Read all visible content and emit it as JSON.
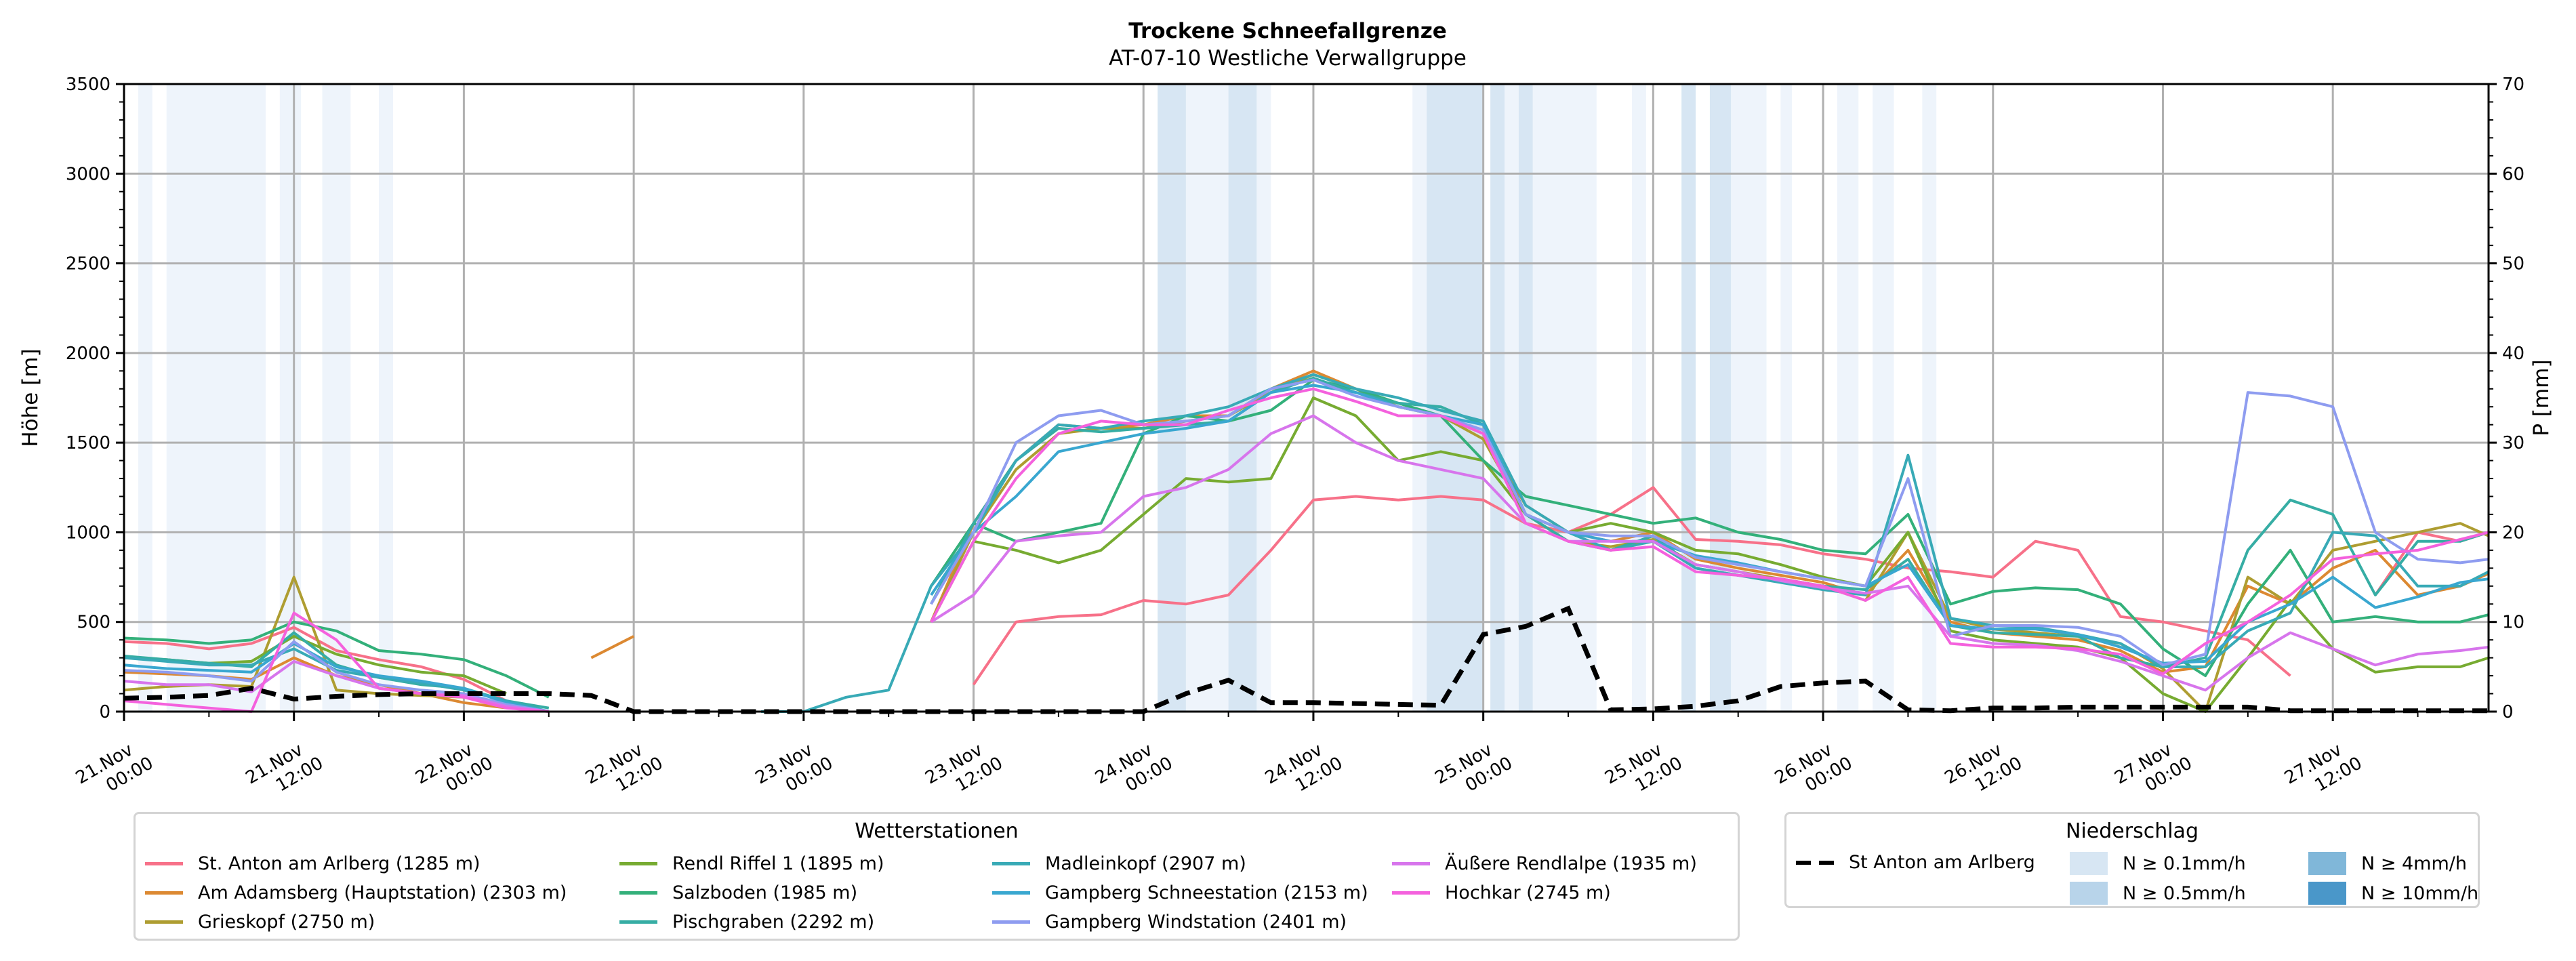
{
  "chart_data": {
    "type": "line",
    "title": "Trockene Schneefallgrenze",
    "subtitle": "AT-07-10 Westliche Verwallgruppe",
    "ylabel": "Höhe [m]",
    "y2label": "P [mm]",
    "ylim": [
      0,
      3500
    ],
    "y2lim": [
      0,
      70
    ],
    "yticks": [
      "0",
      "500",
      "1000",
      "1500",
      "2000",
      "2500",
      "3000",
      "3500"
    ],
    "y2ticks": [
      "0",
      "10",
      "20",
      "30",
      "40",
      "50",
      "60",
      "70"
    ],
    "grid": true,
    "x_unit": "hours since 21.Nov 00:00",
    "xlim_hours": [
      0,
      167
    ],
    "xticks": [
      {
        "hour": 0,
        "label1": "21.Nov",
        "label2": "00:00"
      },
      {
        "hour": 12,
        "label1": "21.Nov",
        "label2": "12:00"
      },
      {
        "hour": 24,
        "label1": "22.Nov",
        "label2": "00:00"
      },
      {
        "hour": 36,
        "label1": "22.Nov",
        "label2": "12:00"
      },
      {
        "hour": 48,
        "label1": "23.Nov",
        "label2": "00:00"
      },
      {
        "hour": 60,
        "label1": "23.Nov",
        "label2": "12:00"
      },
      {
        "hour": 72,
        "label1": "24.Nov",
        "label2": "00:00"
      },
      {
        "hour": 84,
        "label1": "24.Nov",
        "label2": "12:00"
      },
      {
        "hour": 96,
        "label1": "25.Nov",
        "label2": "00:00"
      },
      {
        "hour": 108,
        "label1": "25.Nov",
        "label2": "12:00"
      },
      {
        "hour": 120,
        "label1": "26.Nov",
        "label2": "00:00"
      },
      {
        "hour": 132,
        "label1": "26.Nov",
        "label2": "12:00"
      },
      {
        "hour": 144,
        "label1": "27.Nov",
        "label2": "00:00"
      },
      {
        "hour": 156,
        "label1": "27.Nov",
        "label2": "12:00"
      }
    ],
    "x_hours": [
      0,
      3,
      6,
      9,
      12,
      15,
      18,
      21,
      24,
      27,
      30,
      33,
      36,
      39,
      42,
      45,
      48,
      51,
      54,
      57,
      60,
      63,
      66,
      69,
      72,
      75,
      78,
      81,
      84,
      87,
      90,
      93,
      96,
      99,
      102,
      105,
      108,
      111,
      114,
      117,
      120,
      123,
      126,
      129,
      132,
      135,
      138,
      141,
      144,
      147,
      150,
      153,
      156,
      159,
      162,
      165,
      167
    ],
    "series": [
      {
        "name": "St. Anton am Arlberg (1285 m)",
        "color": "#f77189",
        "values": [
          390,
          380,
          350,
          380,
          470,
          340,
          290,
          250,
          180,
          60,
          null,
          null,
          400,
          null,
          null,
          null,
          null,
          null,
          null,
          null,
          150,
          500,
          530,
          540,
          620,
          600,
          650,
          900,
          1180,
          1200,
          1180,
          1200,
          1180,
          1050,
          1000,
          1100,
          1250,
          960,
          950,
          930,
          880,
          850,
          800,
          780,
          750,
          950,
          900,
          530,
          500,
          450,
          400,
          200,
          null,
          650,
          1000,
          950,
          1000
        ]
      },
      {
        "name": "Am Adamsberg (Hauptstation) (2303 m)",
        "color": "#dc8932",
        "values": [
          220,
          210,
          200,
          180,
          300,
          200,
          150,
          100,
          50,
          20,
          null,
          300,
          420,
          null,
          null,
          null,
          null,
          null,
          null,
          500,
          1050,
          1400,
          1600,
          1580,
          1600,
          1650,
          1650,
          1800,
          1900,
          1800,
          1700,
          1650,
          1550,
          1150,
          1000,
          950,
          1000,
          850,
          800,
          760,
          720,
          650,
          900,
          500,
          440,
          420,
          400,
          340,
          220,
          250,
          700,
          600,
          800,
          900,
          650,
          700,
          770
        ]
      },
      {
        "name": "Grieskopf (2750 m)",
        "color": "#ae9d31",
        "values": [
          120,
          140,
          150,
          140,
          750,
          120,
          100,
          90,
          80,
          30,
          null,
          null,
          300,
          null,
          null,
          null,
          null,
          null,
          null,
          500,
          1000,
          1350,
          1550,
          1580,
          1580,
          1620,
          1650,
          1780,
          1880,
          1800,
          1700,
          1650,
          1520,
          1100,
          950,
          920,
          960,
          820,
          780,
          740,
          700,
          620,
          1000,
          520,
          460,
          440,
          420,
          380,
          240,
          0,
          750,
          600,
          900,
          950,
          1000,
          1050,
          980
        ]
      },
      {
        "name": "Rendl Riffel 1 (1895 m)",
        "color": "#77ab31",
        "values": [
          300,
          290,
          270,
          280,
          420,
          320,
          260,
          220,
          200,
          100,
          null,
          null,
          850,
          null,
          null,
          null,
          null,
          null,
          null,
          500,
          950,
          900,
          830,
          900,
          1100,
          1300,
          1280,
          1300,
          1750,
          1650,
          1400,
          1450,
          1400,
          1100,
          1000,
          1050,
          1000,
          900,
          880,
          820,
          750,
          700,
          1000,
          450,
          400,
          380,
          360,
          300,
          100,
          0,
          300,
          620,
          350,
          220,
          250,
          250,
          300
        ]
      },
      {
        "name": "Salzboden (1985 m)",
        "color": "#33b07a",
        "values": [
          410,
          400,
          380,
          400,
          500,
          450,
          340,
          320,
          290,
          200,
          80,
          null,
          860,
          null,
          null,
          null,
          null,
          null,
          null,
          700,
          1050,
          950,
          1000,
          1050,
          1550,
          1650,
          1620,
          1680,
          1850,
          1800,
          1720,
          1650,
          1400,
          1200,
          1150,
          1100,
          1050,
          1080,
          1000,
          960,
          900,
          880,
          1100,
          600,
          670,
          690,
          680,
          600,
          350,
          200,
          600,
          900,
          500,
          530,
          500,
          500,
          540
        ]
      },
      {
        "name": "Pischgraben (2292 m)",
        "color": "#36ada4",
        "values": [
          310,
          290,
          270,
          250,
          440,
          260,
          190,
          150,
          130,
          60,
          20,
          null,
          300,
          null,
          null,
          null,
          null,
          null,
          null,
          600,
          1050,
          1400,
          1580,
          1560,
          1580,
          1600,
          1620,
          1780,
          1860,
          1780,
          1720,
          1700,
          1600,
          1100,
          950,
          900,
          980,
          800,
          760,
          740,
          700,
          680,
          850,
          480,
          440,
          430,
          420,
          300,
          250,
          300,
          900,
          1180,
          1100,
          650,
          950,
          950,
          1000
        ]
      },
      {
        "name": "Madleinkopf (2907 m)",
        "color": "#38aab6",
        "values": [
          300,
          280,
          260,
          260,
          350,
          230,
          190,
          160,
          120,
          60,
          0,
          null,
          280,
          null,
          null,
          0,
          0,
          80,
          120,
          700,
          1000,
          1400,
          1600,
          1580,
          1620,
          1650,
          1700,
          1800,
          1880,
          1800,
          1750,
          1680,
          1620,
          1150,
          1000,
          900,
          950,
          800,
          760,
          720,
          680,
          650,
          1430,
          520,
          480,
          470,
          430,
          380,
          250,
          250,
          450,
          550,
          1000,
          980,
          700,
          700,
          780
        ]
      },
      {
        "name": "Gampberg Schneestation (2153 m)",
        "color": "#39a7d0",
        "values": [
          260,
          240,
          230,
          220,
          380,
          250,
          200,
          170,
          130,
          50,
          0,
          null,
          350,
          null,
          null,
          null,
          null,
          null,
          null,
          650,
          1000,
          1200,
          1450,
          1500,
          1550,
          1580,
          1620,
          1780,
          1820,
          1780,
          1700,
          1650,
          1600,
          1100,
          1000,
          950,
          950,
          870,
          830,
          780,
          740,
          700,
          820,
          480,
          460,
          460,
          430,
          360,
          270,
          280,
          500,
          600,
          750,
          580,
          640,
          720,
          740
        ]
      },
      {
        "name": "Gampberg Windstation (2401 m)",
        "color": "#8e9cf0",
        "values": [
          230,
          220,
          200,
          170,
          390,
          220,
          150,
          120,
          100,
          40,
          0,
          null,
          60,
          null,
          null,
          null,
          null,
          null,
          null,
          600,
          1000,
          1500,
          1650,
          1680,
          1600,
          1620,
          1650,
          1800,
          1850,
          1760,
          1700,
          1650,
          1570,
          1100,
          1000,
          980,
          980,
          860,
          820,
          780,
          740,
          700,
          1300,
          420,
          480,
          480,
          470,
          420,
          260,
          320,
          1780,
          1760,
          1700,
          1000,
          850,
          830,
          850
        ]
      },
      {
        "name": "Äußere Rendlalpe (1935 m)",
        "color": "#d775ec",
        "values": [
          170,
          150,
          150,
          110,
          280,
          200,
          130,
          100,
          90,
          30,
          0,
          null,
          80,
          null,
          null,
          null,
          null,
          null,
          null,
          500,
          650,
          950,
          980,
          1000,
          1200,
          1250,
          1350,
          1550,
          1650,
          1500,
          1400,
          1350,
          1300,
          1050,
          950,
          950,
          950,
          820,
          780,
          730,
          690,
          660,
          700,
          420,
          380,
          370,
          340,
          280,
          200,
          120,
          300,
          440,
          350,
          260,
          320,
          340,
          360
        ]
      },
      {
        "name": "Hochkar (2745 m)",
        "color": "#f461dd",
        "values": [
          60,
          40,
          20,
          0,
          550,
          400,
          130,
          100,
          80,
          20,
          0,
          null,
          null,
          null,
          null,
          null,
          null,
          null,
          null,
          500,
          950,
          1300,
          1550,
          1620,
          1600,
          1600,
          1680,
          1750,
          1800,
          1730,
          1650,
          1650,
          1550,
          1050,
          950,
          900,
          920,
          780,
          760,
          740,
          700,
          620,
          750,
          380,
          360,
          360,
          350,
          320,
          210,
          380,
          500,
          650,
          850,
          880,
          900,
          960,
          1000
        ]
      }
    ],
    "precip_line": {
      "name": "St Anton am Arlberg",
      "style": "dashed",
      "color": "#000000",
      "values_mm": [
        1.5,
        1.6,
        1.8,
        2.6,
        1.4,
        1.7,
        1.9,
        2.0,
        2.0,
        2.0,
        2.0,
        1.8,
        0,
        0,
        0,
        0,
        0,
        0,
        0,
        0,
        0,
        0,
        0,
        0,
        0,
        2.0,
        3.5,
        1.0,
        1.0,
        0.9,
        0.8,
        0.7,
        8.6,
        9.5,
        11.5,
        0.2,
        0.3,
        0.6,
        1.2,
        2.8,
        3.2,
        3.4,
        0.2,
        0.1,
        0.4,
        0.4,
        0.5,
        0.5,
        0.5,
        0.5,
        0.5,
        0.1,
        0.1,
        0.1,
        0.1,
        0.1,
        0.1
      ]
    },
    "precip_bands": [
      {
        "from": 1,
        "to": 2,
        "level": 1
      },
      {
        "from": 3,
        "to": 10,
        "level": 1
      },
      {
        "from": 11,
        "to": 12.5,
        "level": 1
      },
      {
        "from": 14,
        "to": 16,
        "level": 1
      },
      {
        "from": 18,
        "to": 19,
        "level": 1
      },
      {
        "from": 73,
        "to": 75,
        "level": 2
      },
      {
        "from": 75,
        "to": 78,
        "level": 1
      },
      {
        "from": 78,
        "to": 80,
        "level": 2
      },
      {
        "from": 80,
        "to": 81,
        "level": 1
      },
      {
        "from": 91,
        "to": 92,
        "level": 1
      },
      {
        "from": 92,
        "to": 96,
        "level": 2
      },
      {
        "from": 96.5,
        "to": 97.5,
        "level": 2
      },
      {
        "from": 97.5,
        "to": 98.5,
        "level": 1
      },
      {
        "from": 98.5,
        "to": 99.5,
        "level": 2
      },
      {
        "from": 99.5,
        "to": 104,
        "level": 1
      },
      {
        "from": 106.5,
        "to": 107.5,
        "level": 1
      },
      {
        "from": 110,
        "to": 111,
        "level": 2
      },
      {
        "from": 112,
        "to": 113.5,
        "level": 2
      },
      {
        "from": 113.5,
        "to": 116,
        "level": 1
      },
      {
        "from": 117,
        "to": 117.8,
        "level": 1
      },
      {
        "from": 121,
        "to": 122.5,
        "level": 1
      },
      {
        "from": 123.5,
        "to": 125,
        "level": 1
      },
      {
        "from": 127,
        "to": 128,
        "level": 1
      }
    ],
    "legend_stations": {
      "title": "Wetterstationen",
      "placement": "bottom-left"
    },
    "legend_precip": {
      "title": "Niederschlag",
      "placement": "bottom-right",
      "line_label": "St Anton am Arlberg",
      "levels": [
        {
          "label": "N ≥ 0.1mm/h",
          "color": "#d7e6f3"
        },
        {
          "label": "N ≥ 0.5mm/h",
          "color": "#b8d4ea"
        },
        {
          "label": "N ≥ 4mm/h",
          "color": "#80b7d9"
        },
        {
          "label": "N ≥ 10mm/h",
          "color": "#4a97c9"
        }
      ]
    }
  }
}
